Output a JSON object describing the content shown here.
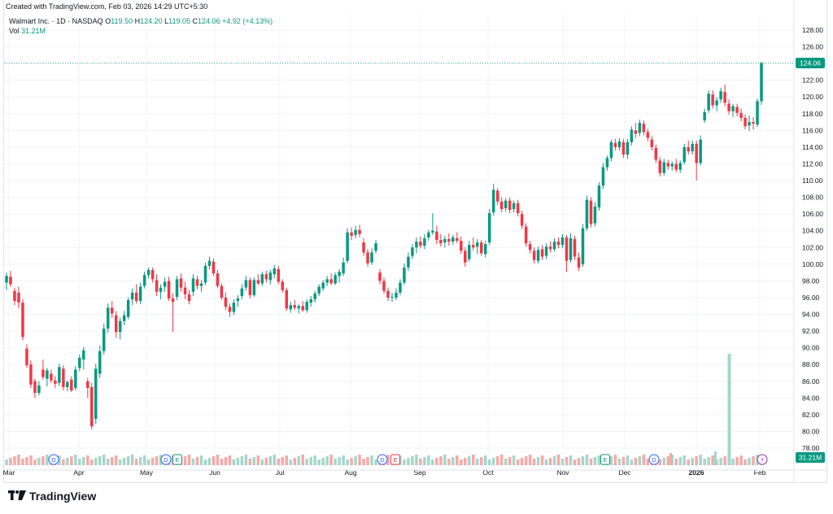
{
  "header": {
    "credit": "Created with TradingView.com, Feb 03, 2026 14:29 UTC+5:30"
  },
  "legend": {
    "symbol": "Walmart Inc. · 1D · NASDAQ",
    "o_label": "O",
    "o_value": "119.50",
    "h_label": "H",
    "h_value": "124.20",
    "l_label": "L",
    "l_value": "119.05",
    "c_label": "C",
    "c_value": "124.06",
    "change": "+4.92 (+4.13%)",
    "vol_label": "Vol",
    "vol_value": "31.21M"
  },
  "colors": {
    "up": "#089981",
    "down": "#f23645",
    "vol_up": "#a5d6c9",
    "vol_down": "#f7a9a7",
    "grid": "#f0f3fa",
    "axis_text": "#131722"
  },
  "price_badge": "124.06",
  "volume_badge": "31.21M",
  "footer": {
    "brand": "TradingView"
  },
  "events": [
    {
      "type": "D",
      "date": "Mar 20"
    },
    {
      "type": "D",
      "date": "May 9"
    },
    {
      "type": "E",
      "date": "May 15"
    },
    {
      "type": "D",
      "date": "Aug 15"
    },
    {
      "type": "E",
      "date": "Aug 21"
    },
    {
      "type": "E",
      "date": "Nov 20"
    },
    {
      "type": "D",
      "date": "Dec 12"
    },
    {
      "type": "flash",
      "date": "Feb 3"
    }
  ],
  "chart_data": {
    "type": "candlestick",
    "title": "Walmart Inc. · 1D · NASDAQ",
    "y_ticks": [
      78,
      80,
      82,
      84,
      86,
      88,
      90,
      92,
      94,
      96,
      98,
      100,
      102,
      104,
      106,
      108,
      110,
      112,
      114,
      116,
      118,
      120,
      122,
      124,
      126,
      128
    ],
    "ylim": [
      76,
      129.5
    ],
    "x_labels": [
      "Mar",
      "Apr",
      "May",
      "Jun",
      "Jul",
      "Aug",
      "Sep",
      "Oct",
      "Nov",
      "Dec",
      "2026",
      "Feb"
    ],
    "grid": true,
    "last_price_line": 124.06,
    "candles": [
      {
        "o": 97.8,
        "h": 99.0,
        "l": 96.9,
        "c": 98.6
      },
      {
        "o": 98.5,
        "h": 99.2,
        "l": 97.3,
        "c": 97.6
      },
      {
        "o": 96.8,
        "h": 97.2,
        "l": 95.1,
        "c": 95.6
      },
      {
        "o": 96.6,
        "h": 97.3,
        "l": 94.7,
        "c": 95.4
      },
      {
        "o": 95.4,
        "h": 95.8,
        "l": 90.9,
        "c": 91.3
      },
      {
        "o": 89.9,
        "h": 90.4,
        "l": 87.6,
        "c": 87.9
      },
      {
        "o": 88.0,
        "h": 88.5,
        "l": 85.2,
        "c": 85.6
      },
      {
        "o": 86.0,
        "h": 86.3,
        "l": 84.0,
        "c": 84.6
      },
      {
        "o": 84.6,
        "h": 86.0,
        "l": 84.3,
        "c": 85.5
      },
      {
        "o": 87.4,
        "h": 88.6,
        "l": 86.2,
        "c": 86.5
      },
      {
        "o": 86.3,
        "h": 87.6,
        "l": 85.4,
        "c": 87.3
      },
      {
        "o": 86.9,
        "h": 87.4,
        "l": 85.8,
        "c": 86.1
      },
      {
        "o": 86.1,
        "h": 86.6,
        "l": 85.2,
        "c": 85.7
      },
      {
        "o": 85.8,
        "h": 88.1,
        "l": 85.4,
        "c": 87.7
      },
      {
        "o": 87.5,
        "h": 87.9,
        "l": 84.9,
        "c": 85.3
      },
      {
        "o": 85.3,
        "h": 86.1,
        "l": 84.8,
        "c": 85.9
      },
      {
        "o": 86.2,
        "h": 86.6,
        "l": 84.7,
        "c": 84.9
      },
      {
        "o": 85.2,
        "h": 87.8,
        "l": 84.9,
        "c": 87.4
      },
      {
        "o": 87.6,
        "h": 89.2,
        "l": 87.2,
        "c": 88.8
      },
      {
        "o": 88.6,
        "h": 90.1,
        "l": 87.4,
        "c": 89.7
      },
      {
        "o": 86.0,
        "h": 86.4,
        "l": 84.0,
        "c": 85.2
      },
      {
        "o": 85.3,
        "h": 85.8,
        "l": 80.2,
        "c": 80.6
      },
      {
        "o": 81.5,
        "h": 88.1,
        "l": 80.9,
        "c": 87.5
      },
      {
        "o": 86.9,
        "h": 90.3,
        "l": 86.4,
        "c": 89.6
      },
      {
        "o": 89.6,
        "h": 92.9,
        "l": 89.2,
        "c": 92.3
      },
      {
        "o": 92.3,
        "h": 95.3,
        "l": 91.8,
        "c": 94.8
      },
      {
        "o": 94.8,
        "h": 95.6,
        "l": 93.6,
        "c": 94.1
      },
      {
        "o": 93.9,
        "h": 94.4,
        "l": 91.2,
        "c": 91.9
      },
      {
        "o": 91.9,
        "h": 93.6,
        "l": 91.0,
        "c": 93.2
      },
      {
        "o": 93.2,
        "h": 94.4,
        "l": 92.7,
        "c": 93.9
      },
      {
        "o": 93.7,
        "h": 96.0,
        "l": 93.4,
        "c": 95.7
      },
      {
        "o": 95.8,
        "h": 97.1,
        "l": 95.1,
        "c": 96.6
      },
      {
        "o": 96.6,
        "h": 97.6,
        "l": 95.3,
        "c": 95.6
      },
      {
        "o": 95.6,
        "h": 97.8,
        "l": 95.2,
        "c": 97.3
      },
      {
        "o": 97.4,
        "h": 99.1,
        "l": 97.1,
        "c": 98.7
      },
      {
        "o": 98.7,
        "h": 99.6,
        "l": 98.3,
        "c": 99.3
      },
      {
        "o": 99.3,
        "h": 99.6,
        "l": 97.8,
        "c": 98.2
      },
      {
        "o": 98.1,
        "h": 98.8,
        "l": 96.2,
        "c": 96.7
      },
      {
        "o": 96.7,
        "h": 97.6,
        "l": 95.8,
        "c": 97.2
      },
      {
        "o": 97.3,
        "h": 98.4,
        "l": 96.7,
        "c": 97.9
      },
      {
        "o": 98.0,
        "h": 98.5,
        "l": 95.6,
        "c": 95.9
      },
      {
        "o": 95.9,
        "h": 96.5,
        "l": 91.9,
        "c": 95.5
      },
      {
        "o": 96.1,
        "h": 98.6,
        "l": 95.7,
        "c": 98.2
      },
      {
        "o": 98.3,
        "h": 98.9,
        "l": 96.7,
        "c": 97.2
      },
      {
        "o": 97.2,
        "h": 97.9,
        "l": 95.8,
        "c": 96.4
      },
      {
        "o": 96.4,
        "h": 96.9,
        "l": 95.2,
        "c": 95.6
      },
      {
        "o": 96.7,
        "h": 98.8,
        "l": 96.2,
        "c": 98.3
      },
      {
        "o": 98.2,
        "h": 98.6,
        "l": 97.0,
        "c": 97.4
      },
      {
        "o": 97.4,
        "h": 98.1,
        "l": 96.7,
        "c": 97.7
      },
      {
        "o": 97.8,
        "h": 100.2,
        "l": 97.5,
        "c": 99.8
      },
      {
        "o": 99.8,
        "h": 100.9,
        "l": 99.4,
        "c": 100.4
      },
      {
        "o": 100.3,
        "h": 100.7,
        "l": 98.6,
        "c": 98.9
      },
      {
        "o": 98.9,
        "h": 99.3,
        "l": 97.1,
        "c": 97.4
      },
      {
        "o": 97.4,
        "h": 97.7,
        "l": 95.7,
        "c": 96.0
      },
      {
        "o": 96.0,
        "h": 96.6,
        "l": 94.5,
        "c": 94.9
      },
      {
        "o": 94.9,
        "h": 95.3,
        "l": 93.7,
        "c": 94.3
      },
      {
        "o": 94.3,
        "h": 95.8,
        "l": 93.9,
        "c": 95.4
      },
      {
        "o": 95.6,
        "h": 96.3,
        "l": 94.9,
        "c": 95.9
      },
      {
        "o": 96.2,
        "h": 97.6,
        "l": 95.8,
        "c": 97.1
      },
      {
        "o": 97.2,
        "h": 98.6,
        "l": 96.8,
        "c": 98.1
      },
      {
        "o": 98.1,
        "h": 98.4,
        "l": 95.9,
        "c": 96.3
      },
      {
        "o": 96.3,
        "h": 98.4,
        "l": 96.1,
        "c": 98.1
      },
      {
        "o": 98.1,
        "h": 98.8,
        "l": 97.5,
        "c": 97.7
      },
      {
        "o": 97.7,
        "h": 99.1,
        "l": 97.4,
        "c": 98.8
      },
      {
        "o": 98.8,
        "h": 99.2,
        "l": 97.8,
        "c": 98.2
      },
      {
        "o": 98.1,
        "h": 99.3,
        "l": 97.6,
        "c": 99.0
      },
      {
        "o": 98.8,
        "h": 99.9,
        "l": 98.3,
        "c": 99.5
      },
      {
        "o": 99.4,
        "h": 99.8,
        "l": 97.6,
        "c": 97.9
      },
      {
        "o": 97.9,
        "h": 98.2,
        "l": 96.6,
        "c": 96.9
      },
      {
        "o": 96.9,
        "h": 97.2,
        "l": 94.4,
        "c": 94.7
      },
      {
        "o": 94.6,
        "h": 95.5,
        "l": 94.2,
        "c": 95.1
      },
      {
        "o": 95.1,
        "h": 95.7,
        "l": 94.5,
        "c": 94.8
      },
      {
        "o": 94.7,
        "h": 95.2,
        "l": 94.1,
        "c": 95.0
      },
      {
        "o": 95.0,
        "h": 95.6,
        "l": 94.3,
        "c": 94.5
      },
      {
        "o": 94.5,
        "h": 95.8,
        "l": 94.2,
        "c": 95.5
      },
      {
        "o": 95.4,
        "h": 96.2,
        "l": 94.9,
        "c": 95.8
      },
      {
        "o": 95.8,
        "h": 96.8,
        "l": 95.4,
        "c": 96.5
      },
      {
        "o": 96.5,
        "h": 97.6,
        "l": 96.2,
        "c": 97.3
      },
      {
        "o": 97.1,
        "h": 98.1,
        "l": 96.8,
        "c": 97.8
      },
      {
        "o": 97.8,
        "h": 98.6,
        "l": 97.4,
        "c": 98.2
      },
      {
        "o": 98.2,
        "h": 98.9,
        "l": 97.5,
        "c": 97.7
      },
      {
        "o": 97.7,
        "h": 99.0,
        "l": 97.5,
        "c": 98.7
      },
      {
        "o": 98.6,
        "h": 99.4,
        "l": 97.8,
        "c": 99.1
      },
      {
        "o": 98.9,
        "h": 100.8,
        "l": 98.6,
        "c": 100.2
      },
      {
        "o": 100.4,
        "h": 104.3,
        "l": 100.1,
        "c": 103.8
      },
      {
        "o": 103.8,
        "h": 104.4,
        "l": 102.9,
        "c": 103.4
      },
      {
        "o": 103.5,
        "h": 104.6,
        "l": 103.1,
        "c": 104.1
      },
      {
        "o": 104.1,
        "h": 104.7,
        "l": 103.2,
        "c": 103.6
      },
      {
        "o": 102.6,
        "h": 103.1,
        "l": 101.0,
        "c": 101.4
      },
      {
        "o": 101.4,
        "h": 101.8,
        "l": 99.7,
        "c": 100.1
      },
      {
        "o": 100.2,
        "h": 101.9,
        "l": 99.9,
        "c": 101.4
      },
      {
        "o": 101.6,
        "h": 102.9,
        "l": 101.3,
        "c": 102.5
      },
      {
        "o": 99.0,
        "h": 99.4,
        "l": 97.6,
        "c": 98.0
      },
      {
        "o": 98.0,
        "h": 98.4,
        "l": 96.5,
        "c": 96.8
      },
      {
        "o": 96.8,
        "h": 97.2,
        "l": 95.6,
        "c": 96.0
      },
      {
        "o": 96.0,
        "h": 96.6,
        "l": 95.5,
        "c": 96.1
      },
      {
        "o": 96.0,
        "h": 97.1,
        "l": 95.7,
        "c": 96.6
      },
      {
        "o": 96.6,
        "h": 98.2,
        "l": 96.3,
        "c": 97.8
      },
      {
        "o": 97.8,
        "h": 100.1,
        "l": 97.5,
        "c": 99.6
      },
      {
        "o": 99.6,
        "h": 101.4,
        "l": 99.2,
        "c": 100.9
      },
      {
        "o": 101.0,
        "h": 102.4,
        "l": 100.6,
        "c": 102.0
      },
      {
        "o": 102.0,
        "h": 103.2,
        "l": 101.3,
        "c": 102.7
      },
      {
        "o": 102.7,
        "h": 103.3,
        "l": 101.9,
        "c": 102.2
      },
      {
        "o": 102.2,
        "h": 103.6,
        "l": 101.8,
        "c": 103.1
      },
      {
        "o": 103.2,
        "h": 104.1,
        "l": 102.8,
        "c": 103.8
      },
      {
        "o": 103.8,
        "h": 106.1,
        "l": 103.5,
        "c": 104.0
      },
      {
        "o": 103.9,
        "h": 104.6,
        "l": 102.4,
        "c": 102.9
      },
      {
        "o": 102.9,
        "h": 103.6,
        "l": 102.1,
        "c": 102.5
      },
      {
        "o": 102.6,
        "h": 103.4,
        "l": 102.0,
        "c": 103.0
      },
      {
        "o": 103.0,
        "h": 103.7,
        "l": 102.2,
        "c": 102.7
      },
      {
        "o": 102.7,
        "h": 103.5,
        "l": 102.3,
        "c": 103.2
      },
      {
        "o": 103.1,
        "h": 103.8,
        "l": 102.5,
        "c": 102.8
      },
      {
        "o": 102.8,
        "h": 103.3,
        "l": 101.2,
        "c": 101.6
      },
      {
        "o": 101.6,
        "h": 102.0,
        "l": 99.7,
        "c": 100.2
      },
      {
        "o": 100.6,
        "h": 102.8,
        "l": 100.3,
        "c": 102.3
      },
      {
        "o": 102.3,
        "h": 103.2,
        "l": 101.6,
        "c": 102.0
      },
      {
        "o": 102.1,
        "h": 103.0,
        "l": 101.2,
        "c": 102.6
      },
      {
        "o": 102.6,
        "h": 102.9,
        "l": 101.0,
        "c": 101.3
      },
      {
        "o": 101.2,
        "h": 102.8,
        "l": 100.8,
        "c": 102.4
      },
      {
        "o": 102.6,
        "h": 106.6,
        "l": 102.3,
        "c": 106.1
      },
      {
        "o": 106.2,
        "h": 109.6,
        "l": 105.8,
        "c": 108.9
      },
      {
        "o": 108.8,
        "h": 109.1,
        "l": 107.1,
        "c": 107.5
      },
      {
        "o": 107.5,
        "h": 108.0,
        "l": 106.2,
        "c": 106.6
      },
      {
        "o": 106.7,
        "h": 107.9,
        "l": 106.3,
        "c": 107.6
      },
      {
        "o": 107.6,
        "h": 108.0,
        "l": 106.1,
        "c": 106.5
      },
      {
        "o": 106.6,
        "h": 107.6,
        "l": 106.2,
        "c": 107.3
      },
      {
        "o": 107.3,
        "h": 107.7,
        "l": 105.7,
        "c": 106.1
      },
      {
        "o": 106.0,
        "h": 106.4,
        "l": 104.2,
        "c": 104.6
      },
      {
        "o": 104.5,
        "h": 104.9,
        "l": 102.1,
        "c": 102.5
      },
      {
        "o": 102.4,
        "h": 102.8,
        "l": 101.3,
        "c": 101.7
      },
      {
        "o": 101.6,
        "h": 102.0,
        "l": 100.1,
        "c": 100.5
      },
      {
        "o": 100.4,
        "h": 102.1,
        "l": 100.1,
        "c": 101.7
      },
      {
        "o": 101.8,
        "h": 102.3,
        "l": 100.5,
        "c": 100.9
      },
      {
        "o": 101.0,
        "h": 102.5,
        "l": 100.6,
        "c": 102.1
      },
      {
        "o": 102.1,
        "h": 102.7,
        "l": 101.4,
        "c": 101.8
      },
      {
        "o": 101.8,
        "h": 103.1,
        "l": 101.5,
        "c": 102.7
      },
      {
        "o": 102.7,
        "h": 103.2,
        "l": 101.9,
        "c": 102.3
      },
      {
        "o": 102.3,
        "h": 103.6,
        "l": 101.9,
        "c": 103.2
      },
      {
        "o": 103.2,
        "h": 103.5,
        "l": 99.1,
        "c": 100.4
      },
      {
        "o": 100.5,
        "h": 103.7,
        "l": 100.2,
        "c": 103.1
      },
      {
        "o": 103.0,
        "h": 103.4,
        "l": 100.5,
        "c": 100.9
      },
      {
        "o": 100.8,
        "h": 101.4,
        "l": 99.2,
        "c": 99.6
      },
      {
        "o": 100.0,
        "h": 104.8,
        "l": 99.7,
        "c": 104.3
      },
      {
        "o": 104.3,
        "h": 108.2,
        "l": 104.0,
        "c": 107.7
      },
      {
        "o": 107.6,
        "h": 108.0,
        "l": 104.4,
        "c": 104.8
      },
      {
        "o": 104.9,
        "h": 107.4,
        "l": 104.5,
        "c": 106.9
      },
      {
        "o": 106.8,
        "h": 109.8,
        "l": 106.4,
        "c": 109.4
      },
      {
        "o": 109.4,
        "h": 112.1,
        "l": 109.0,
        "c": 111.6
      },
      {
        "o": 111.6,
        "h": 113.0,
        "l": 111.2,
        "c": 112.7
      },
      {
        "o": 112.7,
        "h": 114.9,
        "l": 112.3,
        "c": 114.6
      },
      {
        "o": 114.5,
        "h": 115.0,
        "l": 113.6,
        "c": 114.0
      },
      {
        "o": 114.0,
        "h": 115.1,
        "l": 113.6,
        "c": 114.7
      },
      {
        "o": 114.6,
        "h": 115.0,
        "l": 112.7,
        "c": 113.1
      },
      {
        "o": 113.1,
        "h": 115.0,
        "l": 112.6,
        "c": 114.6
      },
      {
        "o": 114.6,
        "h": 116.5,
        "l": 114.2,
        "c": 116.1
      },
      {
        "o": 116.0,
        "h": 116.9,
        "l": 115.1,
        "c": 115.6
      },
      {
        "o": 115.7,
        "h": 117.3,
        "l": 115.3,
        "c": 116.9
      },
      {
        "o": 116.8,
        "h": 117.2,
        "l": 115.4,
        "c": 115.8
      },
      {
        "o": 115.8,
        "h": 116.2,
        "l": 114.7,
        "c": 115.1
      },
      {
        "o": 114.9,
        "h": 115.3,
        "l": 113.6,
        "c": 114.0
      },
      {
        "o": 113.9,
        "h": 114.3,
        "l": 112.1,
        "c": 112.5
      },
      {
        "o": 112.4,
        "h": 112.8,
        "l": 110.5,
        "c": 110.9
      },
      {
        "o": 110.9,
        "h": 112.6,
        "l": 110.6,
        "c": 112.2
      },
      {
        "o": 112.1,
        "h": 112.5,
        "l": 111.3,
        "c": 111.7
      },
      {
        "o": 111.7,
        "h": 112.3,
        "l": 111.2,
        "c": 112.0
      },
      {
        "o": 112.0,
        "h": 112.6,
        "l": 111.0,
        "c": 111.3
      },
      {
        "o": 111.3,
        "h": 112.4,
        "l": 110.9,
        "c": 112.1
      },
      {
        "o": 112.2,
        "h": 114.4,
        "l": 111.9,
        "c": 114.0
      },
      {
        "o": 114.0,
        "h": 114.8,
        "l": 113.1,
        "c": 113.5
      },
      {
        "o": 113.5,
        "h": 114.8,
        "l": 113.1,
        "c": 114.4
      },
      {
        "o": 114.4,
        "h": 114.8,
        "l": 110.0,
        "c": 112.1
      },
      {
        "o": 112.1,
        "h": 115.4,
        "l": 111.8,
        "c": 114.9
      },
      {
        "o": 117.2,
        "h": 118.6,
        "l": 116.9,
        "c": 118.2
      },
      {
        "o": 118.4,
        "h": 120.8,
        "l": 118.1,
        "c": 120.4
      },
      {
        "o": 120.3,
        "h": 120.8,
        "l": 118.6,
        "c": 119.0
      },
      {
        "o": 119.0,
        "h": 120.0,
        "l": 118.3,
        "c": 119.6
      },
      {
        "o": 119.7,
        "h": 121.1,
        "l": 119.3,
        "c": 120.7
      },
      {
        "o": 120.6,
        "h": 121.5,
        "l": 118.9,
        "c": 119.3
      },
      {
        "o": 119.2,
        "h": 119.7,
        "l": 117.9,
        "c": 118.3
      },
      {
        "o": 118.3,
        "h": 119.2,
        "l": 117.6,
        "c": 118.9
      },
      {
        "o": 118.8,
        "h": 119.2,
        "l": 117.7,
        "c": 118.1
      },
      {
        "o": 118.1,
        "h": 118.6,
        "l": 117.1,
        "c": 117.5
      },
      {
        "o": 117.5,
        "h": 117.9,
        "l": 116.1,
        "c": 116.5
      },
      {
        "o": 116.6,
        "h": 117.8,
        "l": 115.9,
        "c": 117.0
      },
      {
        "o": 117.0,
        "h": 117.6,
        "l": 116.1,
        "c": 116.8
      },
      {
        "o": 116.7,
        "h": 119.8,
        "l": 116.4,
        "c": 119.5
      },
      {
        "o": 119.5,
        "h": 124.2,
        "l": 119.05,
        "c": 124.06
      }
    ]
  }
}
